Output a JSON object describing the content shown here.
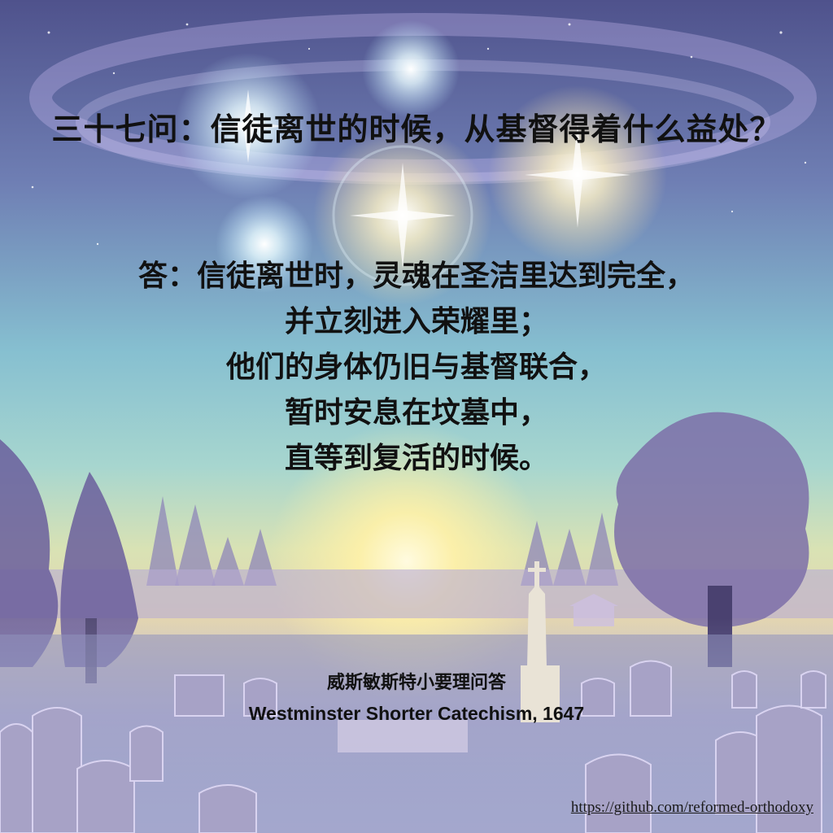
{
  "question": "三十七问：信徒离世的时候，从基督得着什么益处？",
  "answer_lines": [
    "答：信徒离世时，灵魂在圣洁里达到完全，",
    "并立刻进入荣耀里；",
    "他们的身体仍旧与基督联合，",
    "暂时安息在坟墓中，",
    "直等到复活的时候。"
  ],
  "source": {
    "chinese": "威斯敏斯特小要理问答",
    "english": "Westminster Shorter Catechism, 1647"
  },
  "link": "https://github.com/reformed-orthodoxy",
  "colors": {
    "sky_top": "#5a5f9a",
    "sky_mid": "#7fb3c9",
    "glow": "#fff6c8",
    "text": "#111111"
  }
}
